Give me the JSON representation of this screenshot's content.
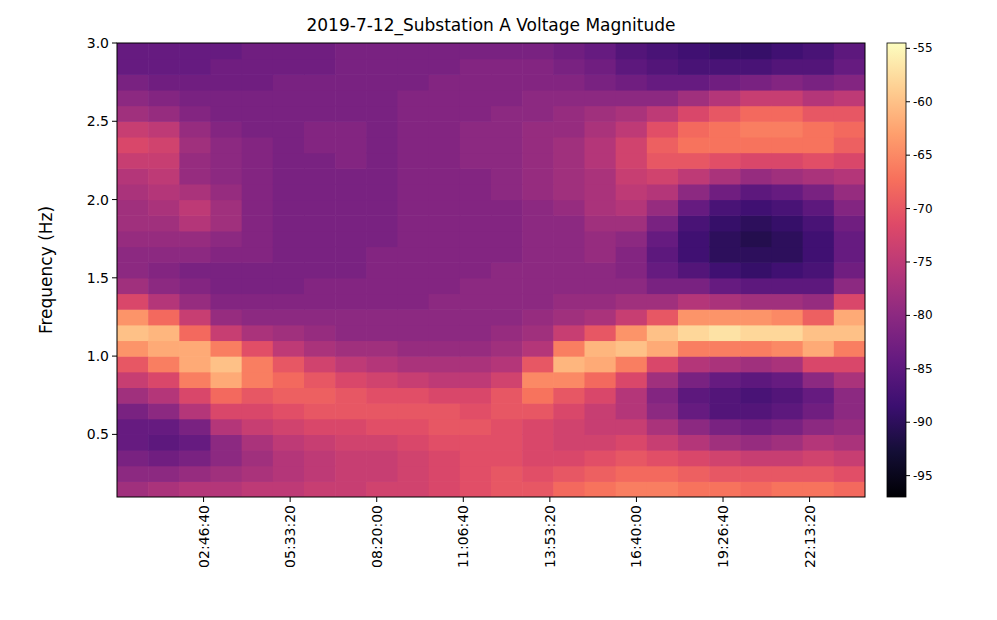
{
  "chart_data": {
    "type": "heatmap",
    "title": "2019-7-12_Substation A Voltage Magnitude",
    "y_label": "Frequency (Hz)",
    "xlim": [
      0,
      86400
    ],
    "xticks": [
      {
        "value": 10000,
        "label": "02:46:40"
      },
      {
        "value": 20000,
        "label": "05:33:20"
      },
      {
        "value": 30000,
        "label": "08:20:00"
      },
      {
        "value": 40000,
        "label": "11:06:40"
      },
      {
        "value": 50000,
        "label": "13:53:20"
      },
      {
        "value": 60000,
        "label": "16:40:00"
      },
      {
        "value": 70000,
        "label": "19:26:40"
      },
      {
        "value": 80000,
        "label": "22:13:20"
      }
    ],
    "ylim": [
      0.1,
      3.0
    ],
    "yticks": [
      0.5,
      {
        "value": 1,
        "label": "1.0"
      },
      1.5,
      {
        "value": 2,
        "label": "2.0"
      },
      2.5,
      {
        "value": 3,
        "label": "3.0"
      }
    ],
    "x_edges": [
      0,
      3600,
      7200,
      10800,
      14400,
      18000,
      21600,
      25200,
      28800,
      32400,
      36000,
      39600,
      43200,
      46800,
      50400,
      54000,
      57600,
      61200,
      64800,
      68400,
      72000,
      75600,
      79200,
      82800,
      86400
    ],
    "y_edges": [
      0.1,
      0.2,
      0.3,
      0.4,
      0.5,
      0.6,
      0.7,
      0.8,
      0.9,
      1.0,
      1.1,
      1.2,
      1.3,
      1.4,
      1.5,
      1.6,
      1.7,
      1.8,
      1.9,
      2.0,
      2.1,
      2.2,
      2.3,
      2.4,
      2.5,
      2.6,
      2.7,
      2.8,
      2.9,
      3.0
    ],
    "cells": [
      [
        -78,
        -80,
        -82,
        -84,
        -84,
        -82,
        -78,
        -74,
        -70,
        -64,
        -60,
        -64,
        -72,
        -78,
        -80,
        -80,
        -79,
        -78,
        -78,
        -77,
        -76,
        -74,
        -72,
        -74,
        -78,
        -80,
        -82,
        -84,
        -84
      ],
      [
        -77,
        -80,
        -83,
        -85,
        -84,
        -80,
        -76,
        -72,
        -66,
        -62,
        -61,
        -68,
        -76,
        -80,
        -81,
        -80,
        -79,
        -78,
        -77,
        -76,
        -75,
        -74,
        -73,
        -75,
        -79,
        -81,
        -83,
        -84,
        -84
      ],
      [
        -76,
        -79,
        -82,
        -84,
        -82,
        -76,
        -72,
        -66,
        -62,
        -62,
        -68,
        -74,
        -79,
        -81,
        -82,
        -80,
        -79,
        -76,
        -75,
        -77,
        -79,
        -79,
        -78,
        -79,
        -81,
        -82,
        -83,
        -84,
        -84
      ],
      [
        -76,
        -78,
        -80,
        -80,
        -76,
        -72,
        -68,
        -62,
        -60,
        -66,
        -74,
        -79,
        -81,
        -82,
        -82,
        -81,
        -80,
        -78,
        -78,
        -79,
        -80,
        -80,
        -80,
        -81,
        -82,
        -82,
        -83,
        -83,
        -84
      ],
      [
        -75,
        -77,
        -78,
        -77,
        -74,
        -72,
        -70,
        -66,
        -66,
        -71,
        -77,
        -80,
        -81,
        -82,
        -82,
        -81,
        -81,
        -81,
        -81,
        -81,
        -81,
        -81,
        -81,
        -82,
        -82,
        -82,
        -83,
        -83,
        -83
      ],
      [
        -75,
        -76,
        -76,
        -75,
        -73,
        -71,
        -69,
        -68,
        -70,
        -75,
        -78,
        -80,
        -81,
        -82,
        -82,
        -82,
        -82,
        -82,
        -82,
        -82,
        -82,
        -82,
        -82,
        -82,
        -82,
        -82,
        -82,
        -83,
        -83
      ],
      [
        -74,
        -75,
        -75,
        -74,
        -72,
        -70,
        -69,
        -70,
        -73,
        -77,
        -79,
        -80,
        -81,
        -81,
        -82,
        -82,
        -82,
        -82,
        -82,
        -82,
        -82,
        -82,
        -81,
        -81,
        -82,
        -82,
        -82,
        -83,
        -83
      ],
      [
        -74,
        -74,
        -74,
        -73,
        -72,
        -70,
        -70,
        -72,
        -75,
        -78,
        -80,
        -80,
        -81,
        -81,
        -82,
        -82,
        -82,
        -82,
        -82,
        -82,
        -82,
        -81,
        -81,
        -81,
        -82,
        -82,
        -82,
        -82,
        -82
      ],
      [
        -73,
        -74,
        -74,
        -73,
        -71,
        -70,
        -71,
        -73,
        -76,
        -78,
        -80,
        -80,
        -81,
        -81,
        -81,
        -81,
        -82,
        -82,
        -82,
        -82,
        -82,
        -82,
        -82,
        -82,
        -82,
        -82,
        -82,
        -82,
        -82
      ],
      [
        -73,
        -73,
        -73,
        -72,
        -71,
        -70,
        -71,
        -74,
        -77,
        -79,
        -80,
        -80,
        -81,
        -81,
        -81,
        -81,
        -81,
        -81,
        -81,
        -81,
        -81,
        -81,
        -81,
        -81,
        -81,
        -81,
        -82,
        -82,
        -82
      ],
      [
        -72,
        -72,
        -72,
        -71,
        -70,
        -70,
        -72,
        -75,
        -77,
        -79,
        -80,
        -80,
        -80,
        -81,
        -81,
        -81,
        -81,
        -81,
        -81,
        -81,
        -81,
        -81,
        -81,
        -81,
        -81,
        -81,
        -81,
        -82,
        -82
      ],
      [
        -71,
        -71,
        -71,
        -71,
        -70,
        -71,
        -72,
        -75,
        -77,
        -79,
        -80,
        -80,
        -80,
        -80,
        -81,
        -81,
        -81,
        -81,
        -81,
        -81,
        -81,
        -80,
        -80,
        -80,
        -81,
        -81,
        -81,
        -81,
        -82
      ],
      [
        -70,
        -70,
        -71,
        -71,
        -71,
        -70,
        -70,
        -73,
        -76,
        -78,
        -79,
        -80,
        -80,
        -80,
        -80,
        -81,
        -81,
        -81,
        -81,
        -80,
        -80,
        -80,
        -80,
        -80,
        -80,
        -81,
        -81,
        -81,
        -82
      ],
      [
        -70,
        -71,
        -72,
        -72,
        -72,
        -70,
        -67,
        -65,
        -70,
        -76,
        -78,
        -79,
        -80,
        -80,
        -80,
        -80,
        -80,
        -80,
        -80,
        -79,
        -79,
        -79,
        -79,
        -79,
        -80,
        -80,
        -81,
        -81,
        -82
      ],
      [
        -68,
        -70,
        -72,
        -73,
        -73,
        -72,
        -70,
        -65,
        -61,
        -66,
        -74,
        -78,
        -79,
        -80,
        -80,
        -80,
        -80,
        -80,
        -79,
        -78,
        -78,
        -78,
        -78,
        -79,
        -79,
        -80,
        -81,
        -82,
        -83
      ],
      [
        -67,
        -69,
        -71,
        -73,
        -74,
        -74,
        -72,
        -68,
        -62,
        -61,
        -70,
        -77,
        -79,
        -80,
        -80,
        -79,
        -79,
        -78,
        -77,
        -77,
        -77,
        -76,
        -76,
        -77,
        -78,
        -80,
        -82,
        -83,
        -84
      ],
      [
        -66,
        -68,
        -70,
        -72,
        -74,
        -76,
        -76,
        -72,
        -66,
        -60,
        -64,
        -74,
        -78,
        -80,
        -81,
        -81,
        -80,
        -78,
        -76,
        -75,
        -74,
        -73,
        -73,
        -75,
        -77,
        -80,
        -83,
        -85,
        -86
      ],
      [
        -66,
        -68,
        -71,
        -74,
        -77,
        -80,
        -81,
        -78,
        -72,
        -62,
        -60,
        -70,
        -78,
        -82,
        -84,
        -85,
        -84,
        -82,
        -79,
        -76,
        -73,
        -70,
        -69,
        -71,
        -75,
        -80,
        -84,
        -86,
        -87
      ],
      [
        -67,
        -69,
        -72,
        -76,
        -80,
        -84,
        -85,
        -82,
        -76,
        -66,
        -58,
        -64,
        -76,
        -82,
        -86,
        -88,
        -88,
        -87,
        -84,
        -80,
        -75,
        -70,
        -67,
        -68,
        -72,
        -78,
        -84,
        -87,
        -88
      ],
      [
        -67,
        -70,
        -73,
        -78,
        -82,
        -86,
        -86,
        -84,
        -77,
        -66,
        -57,
        -64,
        -77,
        -84,
        -88,
        -90,
        -90,
        -89,
        -87,
        -83,
        -77,
        -71,
        -67,
        -67,
        -70,
        -76,
        -83,
        -87,
        -89
      ],
      [
        -68,
        -70,
        -74,
        -79,
        -83,
        -86,
        -87,
        -85,
        -78,
        -66,
        -58,
        -64,
        -78,
        -85,
        -89,
        -90,
        -91,
        -90,
        -88,
        -85,
        -79,
        -72,
        -67,
        -66,
        -68,
        -74,
        -82,
        -87,
        -89
      ],
      [
        -67,
        -70,
        -74,
        -78,
        -82,
        -85,
        -86,
        -84,
        -77,
        -65,
        -58,
        -65,
        -78,
        -85,
        -88,
        -90,
        -90,
        -89,
        -87,
        -84,
        -78,
        -72,
        -67,
        -66,
        -68,
        -74,
        -81,
        -86,
        -88
      ],
      [
        -67,
        -70,
        -73,
        -76,
        -80,
        -83,
        -84,
        -80,
        -72,
        -62,
        -60,
        -69,
        -79,
        -85,
        -87,
        -88,
        -88,
        -87,
        -85,
        -82,
        -77,
        -71,
        -67,
        -67,
        -70,
        -76,
        -82,
        -86,
        -87
      ],
      [
        -68,
        -71,
        -74,
        -77,
        -79,
        -80,
        -80,
        -77,
        -72,
        -66,
        -60,
        -62,
        -72,
        -80,
        -83,
        -84,
        -84,
        -83,
        -81,
        -79,
        -76,
        -72,
        -69,
        -68,
        -70,
        -75,
        -81,
        -84,
        -85
      ]
    ],
    "color_range": [
      -97,
      -54.5
    ],
    "colorbar_ticks": [
      -95,
      -90,
      -85,
      -80,
      -75,
      -70,
      -65,
      -60,
      -55
    ]
  }
}
